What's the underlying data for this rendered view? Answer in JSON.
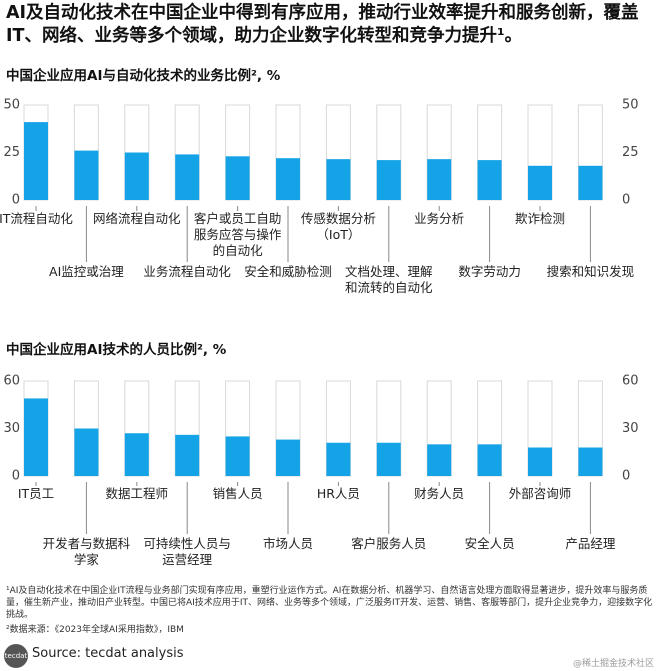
{
  "header": {
    "title": "AI及自动化技术在中国企业中得到有序应用，推动行业效率提升和服务创新，覆盖IT、网络、业务等多个领域，助力企业数字化转型和竞争力提升¹。"
  },
  "chart_data": [
    {
      "type": "bar",
      "title": "中国企业应用AI与自动化技术的业务比例², %",
      "categories": [
        "IT流程自动化",
        "AI监控或治理",
        "网络流程自动化",
        "业务流程自动化",
        "客户或员工自助服务应答与操作的自动化",
        "安全和威胁检测",
        "传感数据分析（IoT）",
        "文档处理、理解和流转的自动化",
        "业务分析",
        "数字劳动力",
        "欺诈检测",
        "搜索和知识发现"
      ],
      "values": [
        41,
        26,
        25,
        24,
        23,
        22,
        21.5,
        21,
        21.5,
        21,
        18,
        18
      ],
      "color": "#14a3e6",
      "ylim": [
        0,
        50
      ],
      "yticks": [
        0,
        25,
        50
      ],
      "grid": false
    },
    {
      "type": "bar",
      "title": "中国企业应用AI技术的人员比例², %",
      "categories": [
        "IT员工",
        "开发者与数据科学家",
        "数据工程师",
        "可持续性人员与运营经理",
        "销售人员",
        "市场人员",
        "HR人员",
        "客户服务人员",
        "财务人员",
        "安全人员",
        "外部咨询师",
        "产品经理"
      ],
      "values": [
        49,
        30,
        27,
        26,
        25,
        23,
        21,
        21,
        20,
        20,
        18,
        18
      ],
      "color": "#14a3e6",
      "ylim": [
        0,
        60
      ],
      "yticks": [
        0,
        30,
        60
      ],
      "grid": false
    }
  ],
  "footnotes": [
    "¹AI及自动化技术在中国企业IT流程与业务部门实现有序应用，重塑行业运作方式。AI在数据分析、机器学习、自然语言处理方面取得显著进步，提升效率与服务质量，催生新产业，推动旧产业转型。中国已将AI技术应用于IT、网络、业务等多个领域，广泛服务IT开发、运营、销售、客服等部门，提升企业竞争力，迎接数字化挑战。",
    "²数据来源：《2023年全球AI采用指数》，IBM"
  ],
  "source": {
    "logo": "tecdat",
    "text": "Source: tecdat analysis"
  },
  "watermark": "@稀土掘金技术社区"
}
